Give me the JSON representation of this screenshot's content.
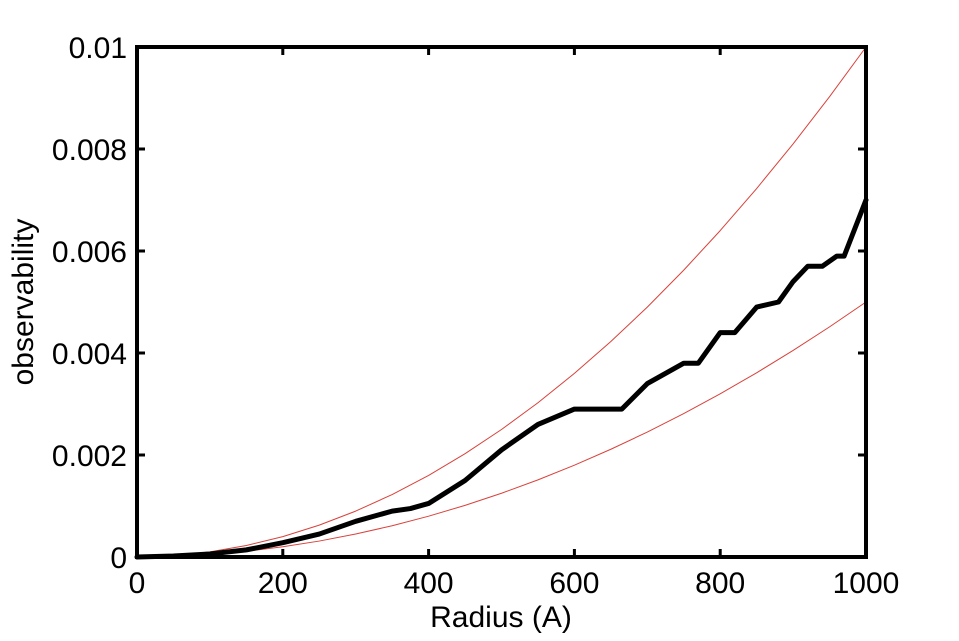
{
  "chart_data": {
    "type": "line",
    "xlabel": "Radius (A)",
    "ylabel": "observability",
    "xlim": [
      0,
      1000
    ],
    "ylim": [
      0,
      0.01
    ],
    "xticks": [
      0,
      200,
      400,
      600,
      800,
      1000
    ],
    "yticks": [
      0,
      0.002,
      0.004,
      0.006,
      0.008,
      0.01
    ],
    "series": [
      {
        "color": "#d9413a",
        "style": "thin",
        "x": [
          0,
          50,
          100,
          150,
          200,
          250,
          300,
          350,
          400,
          450,
          500,
          550,
          600,
          650,
          700,
          750,
          800,
          850,
          900,
          950,
          1000
        ],
        "values": [
          0,
          2.5e-05,
          0.0001,
          0.000225,
          0.0004,
          0.000625,
          0.0009,
          0.001225,
          0.0016,
          0.002025,
          0.0025,
          0.003025,
          0.0036,
          0.004225,
          0.0049,
          0.005625,
          0.0064,
          0.007225,
          0.0081,
          0.009025,
          0.01
        ]
      },
      {
        "color": "#d9413a",
        "style": "thin",
        "x": [
          0,
          50,
          100,
          150,
          200,
          250,
          300,
          350,
          400,
          450,
          500,
          550,
          600,
          650,
          700,
          750,
          800,
          850,
          900,
          950,
          1000
        ],
        "values": [
          0,
          1.25e-05,
          5e-05,
          0.0001125,
          0.0002,
          0.0003125,
          0.00045,
          0.0006125,
          0.0008,
          0.0010125,
          0.00125,
          0.0015125,
          0.0018,
          0.0021125,
          0.00245,
          0.0028125,
          0.0032,
          0.0036125,
          0.00405,
          0.0045125,
          0.005
        ]
      },
      {
        "color": "#000000",
        "style": "thick",
        "x": [
          0,
          50,
          100,
          150,
          200,
          250,
          300,
          350,
          375,
          400,
          450,
          500,
          550,
          600,
          650,
          665,
          700,
          750,
          770,
          800,
          820,
          850,
          880,
          900,
          920,
          940,
          960,
          970,
          1000
        ],
        "values": [
          0,
          2e-05,
          6e-05,
          0.00014,
          0.00028,
          0.00045,
          0.0007,
          0.0009,
          0.00095,
          0.00105,
          0.0015,
          0.0021,
          0.0026,
          0.0029,
          0.0029,
          0.0029,
          0.0034,
          0.0038,
          0.0038,
          0.0044,
          0.0044,
          0.0049,
          0.005,
          0.0054,
          0.0057,
          0.0057,
          0.0059,
          0.0059,
          0.007
        ]
      }
    ]
  }
}
